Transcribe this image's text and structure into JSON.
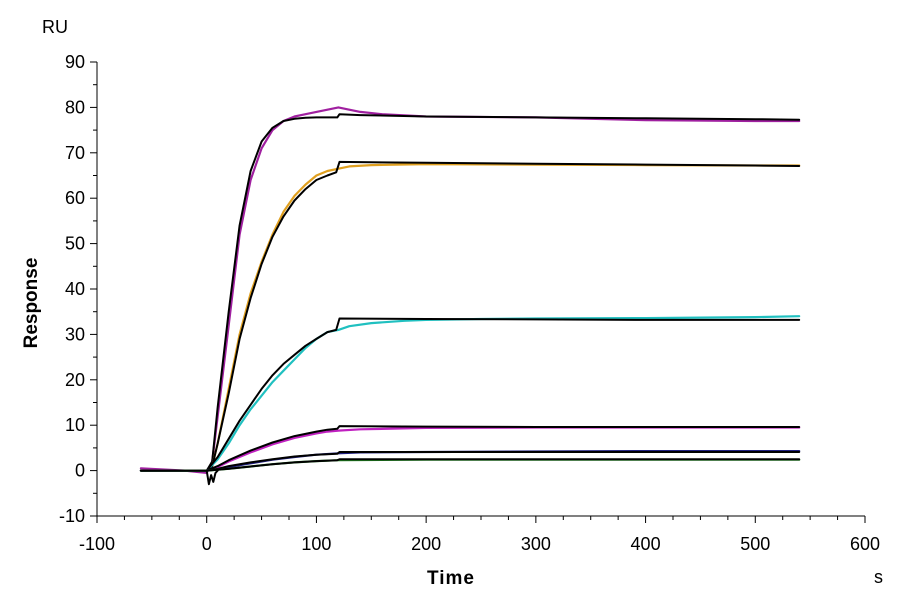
{
  "chart_data": {
    "type": "line",
    "title": "",
    "xlabel": "Time",
    "ylabel": "Response",
    "x_unit": "s",
    "y_unit": "RU",
    "xlim": [
      -100,
      600
    ],
    "ylim": [
      -10,
      90
    ],
    "x_ticks": [
      -100,
      0,
      100,
      200,
      300,
      400,
      500,
      600
    ],
    "y_ticks": [
      -10,
      0,
      10,
      20,
      30,
      40,
      50,
      60,
      70,
      80,
      90
    ],
    "x_tick_labels": [
      "-100",
      "0",
      "100",
      "200",
      "300",
      "400",
      "500",
      "600"
    ],
    "y_tick_labels": [
      "-10",
      "0",
      "10",
      "20",
      "30",
      "40",
      "50",
      "60",
      "70",
      "80",
      "90"
    ],
    "grid": false,
    "legend": "none",
    "series": [
      {
        "color": "#a020a0",
        "x": [
          -60,
          -20,
          0,
          5,
          10,
          20,
          30,
          40,
          50,
          60,
          70,
          80,
          90,
          100,
          110,
          120,
          130,
          140,
          160,
          200,
          300,
          400,
          500,
          540
        ],
        "y": [
          0.5,
          0,
          -0.5,
          2,
          12,
          32,
          52,
          64,
          71,
          75,
          77,
          78,
          78.5,
          79,
          79.5,
          80,
          79.5,
          79,
          78.5,
          78,
          77.8,
          77.2,
          77,
          77
        ]
      },
      {
        "color": "#000000",
        "x": [
          -60,
          -20,
          0,
          5,
          10,
          20,
          30,
          40,
          50,
          60,
          70,
          80,
          90,
          100,
          119,
          121,
          140,
          200,
          300,
          400,
          500,
          540
        ],
        "y": [
          0,
          0,
          0,
          2,
          14,
          35,
          54,
          66,
          72.5,
          75.5,
          77,
          77.5,
          77.7,
          77.8,
          77.8,
          78.5,
          78.3,
          78,
          77.8,
          77.6,
          77.4,
          77.3
        ]
      },
      {
        "color": "#e0a020",
        "x": [
          -60,
          0,
          5,
          10,
          20,
          30,
          40,
          50,
          60,
          70,
          80,
          90,
          100,
          110,
          120,
          130,
          150,
          200,
          300,
          400,
          500,
          540
        ],
        "y": [
          0,
          0,
          1,
          6,
          18,
          30,
          39,
          46,
          52,
          57,
          60.5,
          63,
          65,
          66,
          66.5,
          67,
          67.3,
          67.5,
          67.4,
          67.3,
          67.2,
          67.2
        ]
      },
      {
        "color": "#000000",
        "x": [
          -60,
          0,
          5,
          10,
          20,
          30,
          40,
          50,
          60,
          70,
          80,
          90,
          100,
          110,
          118,
          121,
          150,
          200,
          300,
          400,
          500,
          540
        ],
        "y": [
          0,
          0,
          1,
          6,
          17,
          29,
          38,
          45.5,
          51.5,
          56,
          59.5,
          62,
          64,
          65,
          65.7,
          68,
          67.9,
          67.8,
          67.6,
          67.4,
          67.2,
          67.1
        ]
      },
      {
        "color": "#20c0c0",
        "x": [
          -60,
          0,
          10,
          20,
          30,
          40,
          50,
          60,
          70,
          80,
          90,
          100,
          110,
          120,
          130,
          150,
          180,
          200,
          250,
          300,
          400,
          500,
          540
        ],
        "y": [
          0,
          0,
          2.5,
          6,
          10,
          13.5,
          16.5,
          19.5,
          22,
          24.5,
          27,
          29,
          30.5,
          31,
          31.8,
          32.5,
          33,
          33.2,
          33.4,
          33.5,
          33.6,
          33.8,
          34
        ]
      },
      {
        "color": "#000000",
        "x": [
          -60,
          0,
          10,
          20,
          30,
          40,
          50,
          60,
          70,
          80,
          90,
          100,
          110,
          118,
          121,
          200,
          300,
          400,
          500,
          540
        ],
        "y": [
          0,
          0,
          3,
          7,
          11,
          14.5,
          18,
          21,
          23.5,
          25.5,
          27.5,
          29,
          30.5,
          31,
          33.5,
          33.4,
          33.3,
          33.2,
          33.2,
          33.2
        ]
      },
      {
        "color": "#c020c0",
        "x": [
          -60,
          0,
          10,
          20,
          40,
          60,
          80,
          100,
          110,
          120,
          140,
          200,
          300,
          400,
          500,
          540
        ],
        "y": [
          0,
          0,
          0.8,
          2,
          4,
          5.8,
          7.2,
          8.2,
          8.6,
          8.8,
          9.1,
          9.4,
          9.5,
          9.5,
          9.5,
          9.5
        ]
      },
      {
        "color": "#000000",
        "x": [
          -60,
          0,
          10,
          20,
          40,
          60,
          80,
          100,
          110,
          119,
          121,
          200,
          300,
          400,
          500,
          540
        ],
        "y": [
          0,
          0,
          1,
          2.3,
          4.4,
          6.2,
          7.6,
          8.6,
          9,
          9.2,
          9.8,
          9.7,
          9.6,
          9.6,
          9.6,
          9.6
        ]
      },
      {
        "color": "#202080",
        "x": [
          -60,
          0,
          10,
          20,
          40,
          60,
          80,
          100,
          120,
          140,
          200,
          300,
          400,
          500,
          540
        ],
        "y": [
          0,
          0,
          0.3,
          0.8,
          1.6,
          2.4,
          3,
          3.5,
          3.8,
          4,
          4.1,
          4.2,
          4.3,
          4.3,
          4.3
        ]
      },
      {
        "color": "#000000",
        "x": [
          -60,
          0,
          10,
          20,
          40,
          60,
          80,
          100,
          119,
          121,
          200,
          300,
          400,
          500,
          540
        ],
        "y": [
          0,
          0,
          0.4,
          1,
          1.8,
          2.5,
          3.1,
          3.5,
          3.7,
          4.1,
          4.1,
          4.1,
          4.1,
          4.1,
          4.1
        ]
      },
      {
        "color": "#208020",
        "x": [
          -60,
          0,
          20,
          40,
          60,
          80,
          100,
          120,
          200,
          300,
          400,
          500,
          540
        ],
        "y": [
          0,
          0,
          0.4,
          0.9,
          1.4,
          1.8,
          2.1,
          2.3,
          2.4,
          2.4,
          2.4,
          2.4,
          2.4
        ]
      },
      {
        "color": "#000000",
        "x": [
          -60,
          0,
          20,
          40,
          60,
          80,
          100,
          119,
          121,
          200,
          300,
          400,
          500,
          540
        ],
        "y": [
          0,
          0,
          0.4,
          0.9,
          1.4,
          1.8,
          2.1,
          2.3,
          2.5,
          2.5,
          2.5,
          2.5,
          2.5,
          2.5
        ]
      },
      {
        "color": "#000000",
        "x": [
          0,
          2,
          4,
          6,
          8,
          10
        ],
        "y": [
          0,
          -3,
          -1,
          -2.5,
          -0.5,
          0
        ]
      }
    ]
  }
}
